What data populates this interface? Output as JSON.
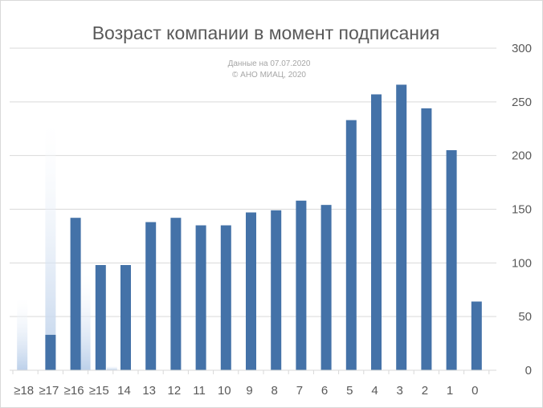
{
  "chart_data": {
    "type": "bar",
    "title": "Возраст компании в момент подписания",
    "subtitle_lines": [
      "Данные на 07.07.2020",
      "© АНО МИАЦ, 2020"
    ],
    "categories": [
      "≥18",
      "≥17",
      "≥16",
      "≥15",
      "14",
      "13",
      "12",
      "11",
      "10",
      "9",
      "8",
      "7",
      "6",
      "5",
      "4",
      "3",
      "2",
      "1",
      "0"
    ],
    "series": [
      {
        "values": [
          0,
          33,
          142,
          98,
          98,
          138,
          142,
          135,
          135,
          147,
          149,
          158,
          154,
          233,
          257,
          266,
          244,
          205,
          64
        ]
      }
    ],
    "decorative_overlay_values": [
      67,
      231,
      90,
      4
    ],
    "ylim": [
      0,
      300
    ],
    "yticks": [
      0,
      50,
      100,
      150,
      200,
      250,
      300
    ],
    "y_axis_position": "right",
    "grid": true,
    "legend": "none",
    "colors": {
      "bar": "#4472a8",
      "grid": "#d9d9d9",
      "text": "#595959",
      "overlay": "#bcd0ea"
    }
  }
}
